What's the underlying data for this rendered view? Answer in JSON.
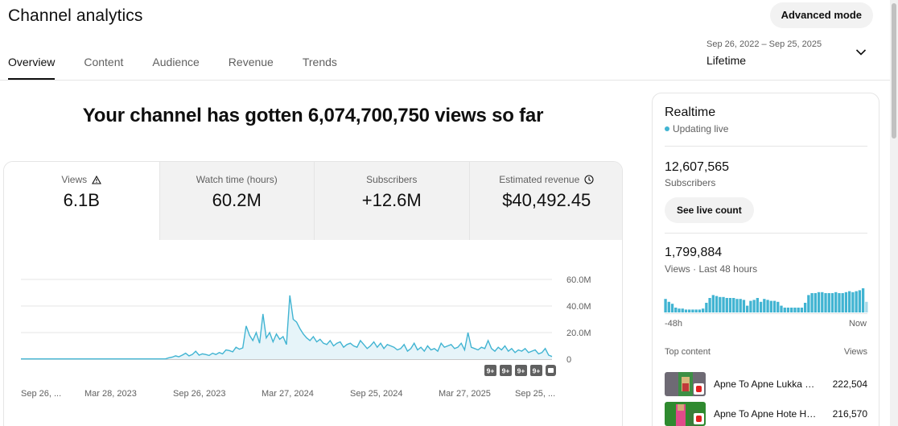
{
  "header": {
    "title": "Channel analytics",
    "advanced_mode_label": "Advanced mode"
  },
  "tabs": [
    {
      "label": "Overview",
      "active": true
    },
    {
      "label": "Content"
    },
    {
      "label": "Audience"
    },
    {
      "label": "Revenue"
    },
    {
      "label": "Trends"
    }
  ],
  "date_picker": {
    "range": "Sep 26, 2022 – Sep 25, 2025",
    "preset": "Lifetime",
    "icon": "chevron-down-icon"
  },
  "headline": "Your channel has gotten 6,074,700,750 views so far",
  "metrics": [
    {
      "label": "Views",
      "value": "6.1B",
      "icon": "warning-icon",
      "active": true
    },
    {
      "label": "Watch time (hours)",
      "value": "60.2M"
    },
    {
      "label": "Subscribers",
      "value": "+12.6M"
    },
    {
      "label": "Estimated revenue",
      "value": "$40,492.45",
      "icon": "clock-icon"
    }
  ],
  "chart_data": {
    "type": "area",
    "x_tick_labels": [
      "Sep 26, ...",
      "Mar 28, 2023",
      "Sep 26, 2023",
      "Mar 27, 2024",
      "Sep 25, 2024",
      "Mar 27, 2025",
      "Sep 25, ..."
    ],
    "y_tick_labels": [
      "60.0M",
      "40.0M",
      "20.0M",
      "0"
    ],
    "ylim": [
      0,
      60000000
    ],
    "grid": true,
    "series": [
      {
        "color": "#41b4d2",
        "values": [
          200000,
          200000,
          200000,
          200000,
          200000,
          200000,
          200000,
          200000,
          200000,
          200000,
          200000,
          200000,
          200000,
          200000,
          200000,
          200000,
          200000,
          200000,
          200000,
          200000,
          200000,
          200000,
          200000,
          200000,
          200000,
          200000,
          200000,
          200000,
          200000,
          200000,
          200000,
          200000,
          200000,
          200000,
          200000,
          200000,
          200000,
          200000,
          200000,
          200000,
          200000,
          200000,
          200000,
          200000,
          1000000,
          1500000,
          2500000,
          1800000,
          3000000,
          4500000,
          2500000,
          3500000,
          6000000,
          3000000,
          4000000,
          3500000,
          2800000,
          4500000,
          3500000,
          5000000,
          4000000,
          7000000,
          6500000,
          5500000,
          9000000,
          7500000,
          8500000,
          25000000,
          18000000,
          14000000,
          20000000,
          12000000,
          34000000,
          16000000,
          20000000,
          13000000,
          19000000,
          15000000,
          17000000,
          11000000,
          48000000,
          30000000,
          28000000,
          23000000,
          19000000,
          16000000,
          14000000,
          17000000,
          13000000,
          15000000,
          12000000,
          11000000,
          14000000,
          10000000,
          12000000,
          13000000,
          9000000,
          11000000,
          12000000,
          10000000,
          9000000,
          14000000,
          11000000,
          8000000,
          10000000,
          13000000,
          9000000,
          12000000,
          8000000,
          11000000,
          10000000,
          9000000,
          7000000,
          8000000,
          11000000,
          6000000,
          8000000,
          12000000,
          7000000,
          9000000,
          6000000,
          10000000,
          7000000,
          8000000,
          6000000,
          12000000,
          9000000,
          10000000,
          11000000,
          8000000,
          9000000,
          12000000,
          7000000,
          20000000,
          9000000,
          8000000,
          7000000,
          9000000,
          8000000,
          14000000,
          8000000,
          6000000,
          9000000,
          7000000,
          10000000,
          6000000,
          8000000,
          5000000,
          7000000,
          6000000,
          8000000,
          5000000,
          6000000,
          7000000,
          4000000,
          5000000,
          8000000,
          3000000,
          2000000
        ]
      }
    ],
    "badges": [
      "9+",
      "9+",
      "9+",
      "9+"
    ]
  },
  "realtime": {
    "title": "Realtime",
    "status": "Updating live",
    "subscribers_count": "12,607,565",
    "subscribers_label": "Subscribers",
    "live_count_button": "See live count",
    "views_count": "1,799,884",
    "views_label": "Views · Last 48 hours",
    "x_start_label": "-48h",
    "x_end_label": "Now",
    "hourly_views": [
      14,
      11,
      9,
      5,
      4,
      4,
      3,
      3,
      3,
      3,
      3,
      4,
      10,
      15,
      18,
      17,
      16,
      16,
      15,
      15,
      15,
      14,
      14,
      13,
      7,
      12,
      13,
      15,
      11,
      14,
      13,
      12,
      12,
      11,
      7,
      5,
      5,
      5,
      5,
      5,
      5,
      10,
      18,
      20,
      20,
      21,
      21,
      20,
      20,
      20,
      21,
      20,
      20,
      21,
      22,
      21,
      22,
      23,
      25,
      11
    ],
    "top_content_label": "Top content",
    "views_column_label": "Views",
    "top_content": [
      {
        "title": "Apne To Apne Lukka D...",
        "views": "222,504"
      },
      {
        "title": "Apne To Apne Hote Ha...",
        "views": "216,570"
      }
    ]
  }
}
